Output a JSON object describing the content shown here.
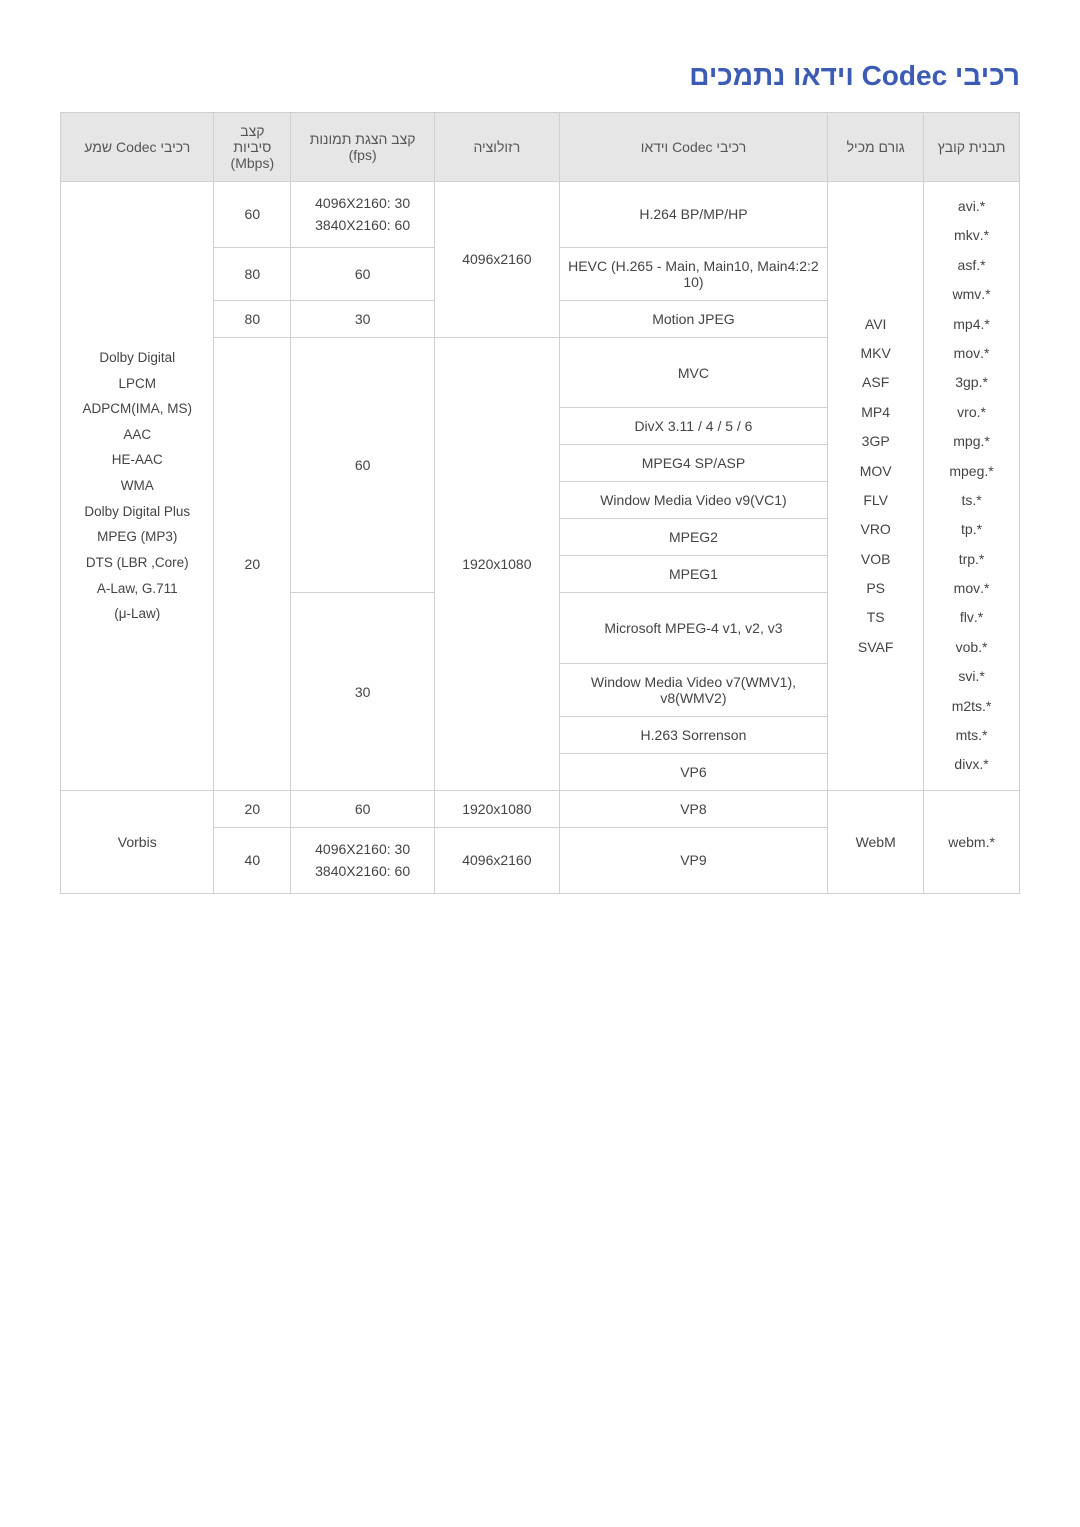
{
  "title": "רכיבי Codec וידאו נתמכים",
  "headers": {
    "ext": "תבנית קובץ",
    "container": "גורם מכיל",
    "vcodec": "רכיבי Codec וידאו",
    "res": "רזולוציה",
    "fps": "קצב הצגת תמונות (fps)",
    "bitrate": "קצב סיביות (Mbps)",
    "acodec": "רכיבי Codec שמע"
  },
  "extensions": "*.avi\n*.mkv\n*.asf\n*.wmv\n*.mp4\n*.mov\n*.3gp\n*.vro\n*.mpg\n*.mpeg\n*.ts\n*.tp\n*.trp\n*.mov\n*.flv\n*.vob\n*.svi\n*.m2ts\n*.mts\n*.divx",
  "containers_main": "AVI\nMKV\nASF\nMP4\n3GP\nMOV\nFLV\nVRO\nVOB\nPS\nTS\nSVAF",
  "acodec_main": "Dolby Digital\nLPCM\nADPCM(IMA, MS)\nAAC\nHE-AAC\nWMA\nDolby Digital Plus\nMPEG (MP3)\n(LBR ,Core) DTS\nA-Law, G.711\n(μ-Law)",
  "rows": {
    "r1_codec": "H.264 BP/MP/HP",
    "r1_res": "4096x2160",
    "r1_fps": "4096X2160: 30\n3840X2160: 60",
    "r1_bitrate": "60",
    "r2_codec": "HEVC (H.265 - Main, Main10, Main4:2:2 10)",
    "r2_fps": "60",
    "r2_bitrate": "80",
    "r3_codec": "Motion JPEG",
    "r3_fps": "30",
    "r3_bitrate": "80",
    "r4_codec": "MVC",
    "r4_res": "1920x1080",
    "r4_fps60": "60",
    "r4_bitrate": "20",
    "r5_codec": "DivX 3.11 / 4 / 5 / 6",
    "r6_codec": "MPEG4 SP/ASP",
    "r7_codec": "Window Media Video v9(VC1)",
    "r8_codec": "MPEG2",
    "r9_codec": "MPEG1",
    "r10_codec": "Microsoft MPEG-4 v1, v2, v3",
    "r10_fps30": "30",
    "r11_codec": "Window Media Video v7(WMV1), v8(WMV2)",
    "r12_codec": "H.263 Sorrenson",
    "r13_codec": "VP6",
    "vp8_codec": "VP8",
    "vp8_res": "1920x1080",
    "vp8_fps": "60",
    "vp8_bitrate": "20",
    "vp9_codec": "VP9",
    "vp9_res": "4096x2160",
    "vp9_fps": "4096X2160: 30\n3840X2160: 60",
    "vp9_bitrate": "40",
    "webm_container": "WebM",
    "webm_ext": "*.webm",
    "vorbis": "Vorbis"
  }
}
